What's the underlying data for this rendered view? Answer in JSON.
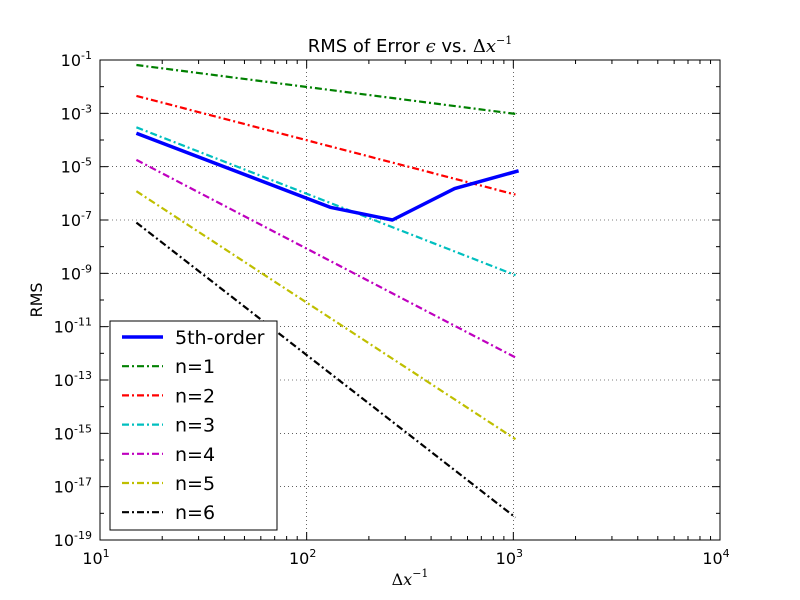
{
  "chart_data": {
    "type": "line",
    "title": {
      "prefix": "RMS of Error ",
      "epsilon": "ϵ",
      "middle": " vs. ",
      "delta": "Δ",
      "x": "x",
      "exp": "−1"
    },
    "xlabel": {
      "delta": "Δ",
      "x": "x",
      "exp": "−1"
    },
    "ylabel": "RMS",
    "xscale": "log",
    "yscale": "log",
    "xlim": [
      10,
      10000
    ],
    "ylim": [
      1e-19,
      0.1
    ],
    "grid": true,
    "legend_position": "lower-left",
    "x_ticks": [
      {
        "base": "10",
        "exp": "1",
        "value": 10
      },
      {
        "base": "10",
        "exp": "2",
        "value": 100
      },
      {
        "base": "10",
        "exp": "3",
        "value": 1000
      },
      {
        "base": "10",
        "exp": "4",
        "value": 10000
      }
    ],
    "y_ticks": [
      {
        "base": "10",
        "exp": "-1",
        "value": 0.1
      },
      {
        "base": "10",
        "exp": "-3",
        "value": 0.001
      },
      {
        "base": "10",
        "exp": "-5",
        "value": 1e-05
      },
      {
        "base": "10",
        "exp": "-7",
        "value": 1e-07
      },
      {
        "base": "10",
        "exp": "-9",
        "value": 1e-09
      },
      {
        "base": "10",
        "exp": "-11",
        "value": 1e-11
      },
      {
        "base": "10",
        "exp": "-13",
        "value": 1e-13
      },
      {
        "base": "10",
        "exp": "-15",
        "value": 1e-15
      },
      {
        "base": "10",
        "exp": "-17",
        "value": 1e-17
      },
      {
        "base": "10",
        "exp": "-19",
        "value": 1e-19
      }
    ],
    "series": [
      {
        "name": "5th-order",
        "color": "#0000ff",
        "style": "solid",
        "x": [
          15,
          130,
          260,
          520,
          1060
        ],
        "y": [
          0.00018,
          3e-07,
          1e-07,
          1.5e-06,
          7e-06
        ]
      },
      {
        "name": "n=1",
        "color": "#008000",
        "style": "dashdot",
        "x": [
          15,
          1024
        ],
        "y": [
          0.065,
          0.00095
        ]
      },
      {
        "name": "n=2",
        "color": "#ff0000",
        "style": "dashdot",
        "x": [
          15,
          1024
        ],
        "y": [
          0.0045,
          9e-07
        ]
      },
      {
        "name": "n=3",
        "color": "#00bfbf",
        "style": "dashdot",
        "x": [
          15,
          1024
        ],
        "y": [
          0.0003,
          8.5e-10
        ]
      },
      {
        "name": "n=4",
        "color": "#bf00bf",
        "style": "dashdot",
        "x": [
          15,
          1024
        ],
        "y": [
          1.8e-05,
          7e-13
        ]
      },
      {
        "name": "n=5",
        "color": "#bfbf00",
        "style": "dashdot",
        "x": [
          15,
          1024
        ],
        "y": [
          1.2e-06,
          6e-16
        ]
      },
      {
        "name": "n=6",
        "color": "#000000",
        "style": "dashdot",
        "x": [
          15,
          1024
        ],
        "y": [
          8e-08,
          7e-19
        ]
      }
    ]
  }
}
